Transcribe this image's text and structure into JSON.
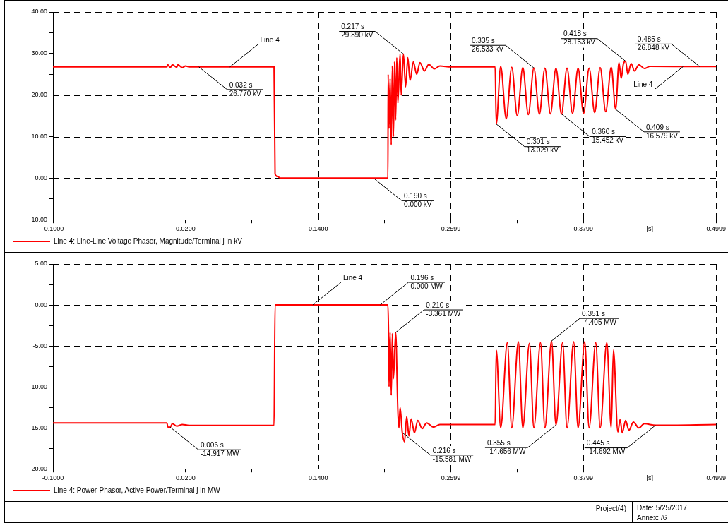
{
  "chart_data": [
    {
      "type": "line",
      "legend": "bottom left",
      "grid": true,
      "xlim": [
        -0.1,
        0.4999
      ],
      "xticks": [
        {
          "value": -0.1,
          "label": "-0.1000"
        },
        {
          "value": -0.04,
          "label": null
        },
        {
          "value": 0.02,
          "label": "0.0200"
        },
        {
          "value": 0.08,
          "label": null
        },
        {
          "value": 0.14,
          "label": "0.1400"
        },
        {
          "value": 0.2,
          "label": null
        },
        {
          "value": 0.2599,
          "label": "0.2599"
        },
        {
          "value": 0.3199,
          "label": null
        },
        {
          "value": 0.3799,
          "label": "0.3799"
        },
        {
          "value": 0.4399,
          "label": "[s]"
        },
        {
          "value": 0.4999,
          "label": "0.4999"
        }
      ],
      "ylim": [
        -10,
        40
      ],
      "yticks": [
        {
          "value": -10,
          "label": "-10.00"
        },
        {
          "value": -5,
          "label": null
        },
        {
          "value": 0,
          "label": "0.00"
        },
        {
          "value": 5,
          "label": null
        },
        {
          "value": 10,
          "label": "10.00"
        },
        {
          "value": 15,
          "label": null
        },
        {
          "value": 20,
          "label": "20.00"
        },
        {
          "value": 25,
          "label": null
        },
        {
          "value": 30,
          "label": "30.00"
        },
        {
          "value": 35,
          "label": null
        },
        {
          "value": 40,
          "label": "40.00"
        }
      ],
      "series": [
        {
          "name": "Line 4: Line-Line Voltage Phasor, Magnitude/Terminal j in kV",
          "color": "#ff0000",
          "x": [
            -0.1,
            0.003,
            0.004,
            0.006,
            0.008,
            0.012,
            0.013,
            0.017,
            0.02,
            0.023,
            0.1,
            0.1009,
            0.103,
            0.106,
            0.203,
            0.2032,
            0.204,
            0.205,
            0.206,
            0.207,
            0.208,
            0.209,
            0.21,
            0.211,
            0.212,
            0.214,
            0.215,
            0.217,
            0.219,
            0.221,
            0.223,
            0.226,
            0.229,
            0.232,
            0.236,
            0.24,
            0.245,
            0.25,
            0.26,
            0.3,
            0.301,
            0.305,
            0.31,
            0.315,
            0.32,
            0.325,
            0.33,
            0.335,
            0.34,
            0.345,
            0.35,
            0.355,
            0.36,
            0.365,
            0.37,
            0.375,
            0.38,
            0.385,
            0.39,
            0.395,
            0.4,
            0.405,
            0.409,
            0.412,
            0.414,
            0.416,
            0.418,
            0.42,
            0.423,
            0.426,
            0.43,
            0.435,
            0.44,
            0.4999
          ],
          "values": [
            26.77,
            26.77,
            27.3,
            26.6,
            27.3,
            26.7,
            27.3,
            26.6,
            27.0,
            26.77,
            26.77,
            1.0,
            0.4,
            0,
            0,
            25,
            12,
            24,
            8,
            27,
            10,
            28,
            14,
            29,
            18,
            30,
            20,
            29.89,
            22,
            29,
            23.5,
            28,
            25,
            27.8,
            25.8,
            27.4,
            26.3,
            27,
            26.77,
            26.77,
            13.03,
            26.9,
            14.3,
            26.7,
            15,
            26.6,
            15.3,
            26.53,
            15.4,
            26.5,
            15.5,
            26.5,
            15.45,
            26.5,
            15.6,
            26.5,
            15.6,
            26.5,
            15.8,
            26.6,
            16,
            26.7,
            16.58,
            27.8,
            24,
            27.5,
            28.15,
            25,
            27.6,
            25.8,
            27.3,
            26.4,
            26.9,
            26.85
          ]
        }
      ],
      "annotations": [
        {
          "text": "0.032 s\n26.770 kV",
          "x": 0.032,
          "y": 26.77
        },
        {
          "text": "Line 4",
          "x": 0.06,
          "y": 26.77
        },
        {
          "text": "0.190 s\n0.000 kV",
          "x": 0.19,
          "y": 0
        },
        {
          "text": "0.217 s\n29.890 kV",
          "x": 0.217,
          "y": 29.89
        },
        {
          "text": "0.301 s\n13.029 kV",
          "x": 0.301,
          "y": 13.029
        },
        {
          "text": "0.335 s\n26.533 kV",
          "x": 0.335,
          "y": 26.533
        },
        {
          "text": "0.360 s\n15.452 kV",
          "x": 0.36,
          "y": 15.452
        },
        {
          "text": "0.409 s\n16.579 kV",
          "x": 0.409,
          "y": 16.579
        },
        {
          "text": "0.418 s\n28.153 kV",
          "x": 0.418,
          "y": 28.153
        },
        {
          "text": "Line 4",
          "x": 0.47,
          "y": 26.85
        },
        {
          "text": "0.485 s\n26.848 kV",
          "x": 0.485,
          "y": 26.848
        }
      ]
    },
    {
      "type": "line",
      "legend": "bottom left",
      "grid": true,
      "xlim": [
        -0.1,
        0.4999
      ],
      "xticks": [
        {
          "value": -0.1,
          "label": "-0.1000"
        },
        {
          "value": -0.04,
          "label": null
        },
        {
          "value": 0.02,
          "label": "0.0200"
        },
        {
          "value": 0.08,
          "label": null
        },
        {
          "value": 0.14,
          "label": "0.1400"
        },
        {
          "value": 0.2,
          "label": null
        },
        {
          "value": 0.2599,
          "label": "0.2599"
        },
        {
          "value": 0.3199,
          "label": null
        },
        {
          "value": 0.3799,
          "label": "0.3799"
        },
        {
          "value": 0.4399,
          "label": "[s]"
        },
        {
          "value": 0.4999,
          "label": "0.4999"
        }
      ],
      "ylim": [
        -20,
        5
      ],
      "yticks": [
        {
          "value": -20,
          "label": "-20.00"
        },
        {
          "value": -17.5,
          "label": null
        },
        {
          "value": -15,
          "label": "-15.00"
        },
        {
          "value": -12.5,
          "label": null
        },
        {
          "value": -10,
          "label": "-10.00"
        },
        {
          "value": -7.5,
          "label": null
        },
        {
          "value": -5,
          "label": "-5.00"
        },
        {
          "value": -2.5,
          "label": null
        },
        {
          "value": 0,
          "label": "0.00"
        },
        {
          "value": 2.5,
          "label": null
        },
        {
          "value": 5,
          "label": "5.00"
        }
      ],
      "series": [
        {
          "name": "Line 4: Power-Phasor, Active Power/Terminal j in MW",
          "color": "#ff0000",
          "x": [
            -0.1,
            0.003,
            0.004,
            0.006,
            0.008,
            0.012,
            0.017,
            0.023,
            0.1,
            0.1009,
            0.203,
            0.2035,
            0.204,
            0.205,
            0.206,
            0.207,
            0.208,
            0.21,
            0.212,
            0.213,
            0.214,
            0.216,
            0.218,
            0.22,
            0.222,
            0.224,
            0.227,
            0.23,
            0.234,
            0.238,
            0.244,
            0.25,
            0.3,
            0.301,
            0.305,
            0.311,
            0.315,
            0.321,
            0.325,
            0.331,
            0.335,
            0.341,
            0.345,
            0.351,
            0.355,
            0.361,
            0.365,
            0.371,
            0.375,
            0.381,
            0.385,
            0.391,
            0.395,
            0.401,
            0.405,
            0.407,
            0.411,
            0.413,
            0.415,
            0.418,
            0.421,
            0.425,
            0.43,
            0.435,
            0.445,
            0.4999
          ],
          "values": [
            -14.4,
            -14.4,
            -14.9,
            -14.92,
            -14.5,
            -14.8,
            -14.6,
            -14.7,
            -14.7,
            0,
            0,
            -3,
            -10,
            -3.36,
            -11,
            -3.5,
            -9,
            -3.36,
            -13,
            -15,
            -12.5,
            -15.58,
            -16.7,
            -13.6,
            -16,
            -13.9,
            -15.6,
            -14.1,
            -15.1,
            -14.4,
            -14.9,
            -14.6,
            -14.6,
            -5.5,
            -15,
            -4.6,
            -15,
            -4.5,
            -15,
            -4.7,
            -15,
            -4.6,
            -15,
            -4.405,
            -14.656,
            -4.6,
            -15,
            -4.5,
            -15,
            -4.5,
            -15,
            -4.6,
            -15,
            -4.6,
            -15,
            -5.5,
            -15.5,
            -14,
            -15.6,
            -14.1,
            -15.3,
            -14.3,
            -15,
            -14.5,
            -14.69,
            -14.6
          ]
        }
      ],
      "annotations": [
        {
          "text": "0.006 s\n-14.917 MW",
          "x": 0.006,
          "y": -14.917
        },
        {
          "text": "Line 4",
          "x": 0.135,
          "y": 0
        },
        {
          "text": "0.196 s\n0.000 MW",
          "x": 0.196,
          "y": 0
        },
        {
          "text": "0.210 s\n-3.361 MW",
          "x": 0.21,
          "y": -3.361
        },
        {
          "text": "0.216 s\n-15.581 MW",
          "x": 0.216,
          "y": -15.581
        },
        {
          "text": "0.351 s\n-4.405 MW",
          "x": 0.351,
          "y": -4.405
        },
        {
          "text": "0.355 s\n-14.656 MW",
          "x": 0.355,
          "y": -14.656
        },
        {
          "text": "0.445 s\n-14.692 MW",
          "x": 0.445,
          "y": -14.692
        },
        "Project(4)",
        "Date: 5/25/2017",
        "Annex: /6"
      ]
    }
  ]
}
